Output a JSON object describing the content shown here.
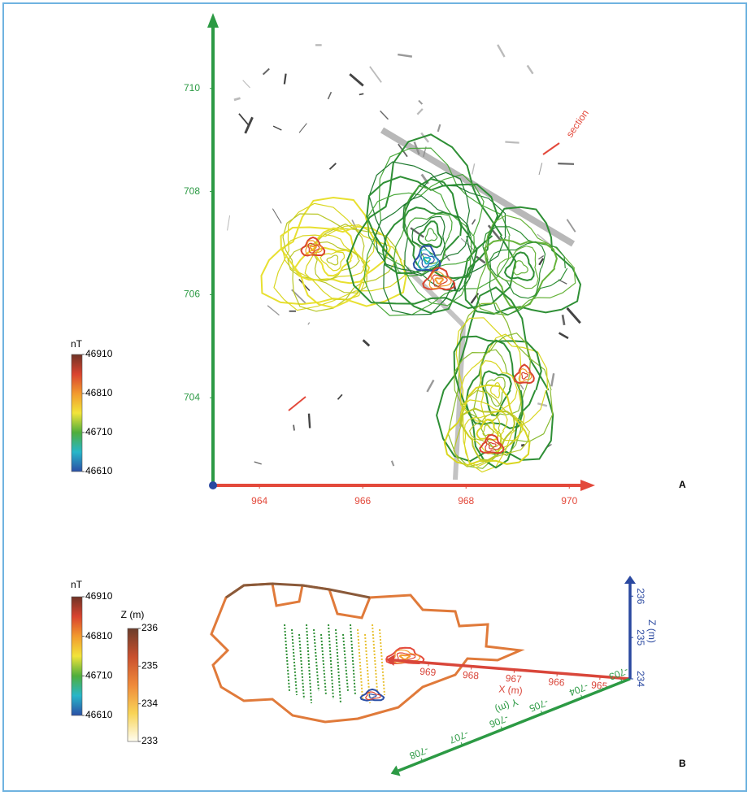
{
  "chart_data": [
    {
      "type": "contour",
      "panel_label": "A",
      "annotation": "section",
      "xlim": [
        963.1,
        970.5
      ],
      "ylim": [
        702.3,
        711.4
      ],
      "xticks": [
        964,
        966,
        968,
        970
      ],
      "yticks": [
        704,
        706,
        708,
        710
      ],
      "x_color": "#e3493b",
      "y_color": "#2c9a44",
      "colorbar": {
        "title": "nT",
        "lim": [
          46610,
          46910
        ],
        "ticks": [
          46610,
          46710,
          46810,
          46910
        ],
        "colors": [
          "#2b4fa6",
          "#27b6c9",
          "#4fae3c",
          "#f2e43a",
          "#f29a2e",
          "#d9432f",
          "#6e3326"
        ]
      }
    },
    {
      "type": "3d",
      "panel_label": "B",
      "colorbars": [
        {
          "title": "nT",
          "lim": [
            46610,
            46910
          ],
          "ticks": [
            46610,
            46710,
            46810,
            46910
          ],
          "colors": [
            "#2b4fa6",
            "#27b6c9",
            "#4fae3c",
            "#f2e43a",
            "#f29a2e",
            "#d9432f",
            "#6e3326"
          ]
        },
        {
          "title": "Z (m)",
          "lim": [
            233,
            236
          ],
          "ticks": [
            233,
            234,
            235,
            236
          ],
          "colors": [
            "#fffdf0",
            "#f8d457",
            "#ef8a3a",
            "#c9502e",
            "#6b3d2c"
          ]
        }
      ],
      "axes": [
        {
          "label": "X (m)",
          "lim": [
            964.3,
            969.8
          ],
          "ticks": [
            965,
            966,
            967,
            968,
            969
          ],
          "color": "#d9463a"
        },
        {
          "label": "Y (m)",
          "lim": [
            -702.8,
            -708.6
          ],
          "ticks": [
            -703,
            -704,
            -705,
            -706,
            -707,
            -708
          ],
          "color": "#2c9a44"
        },
        {
          "label": "Z (m)",
          "lim": [
            234,
            236.3
          ],
          "ticks": [
            234,
            235,
            236
          ],
          "color": "#2a48a0"
        }
      ]
    }
  ]
}
